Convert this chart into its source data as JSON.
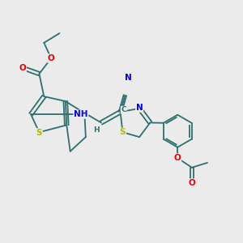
{
  "background_color": "#ebebeb",
  "bond_color": "#2d7070",
  "atom_colors": {
    "S": "#b8b800",
    "N": "#0000ee",
    "O": "#ee0000",
    "C": "#2d7070",
    "H": "#2d7070"
  },
  "figsize": [
    3.0,
    3.0
  ],
  "dpi": 100
}
